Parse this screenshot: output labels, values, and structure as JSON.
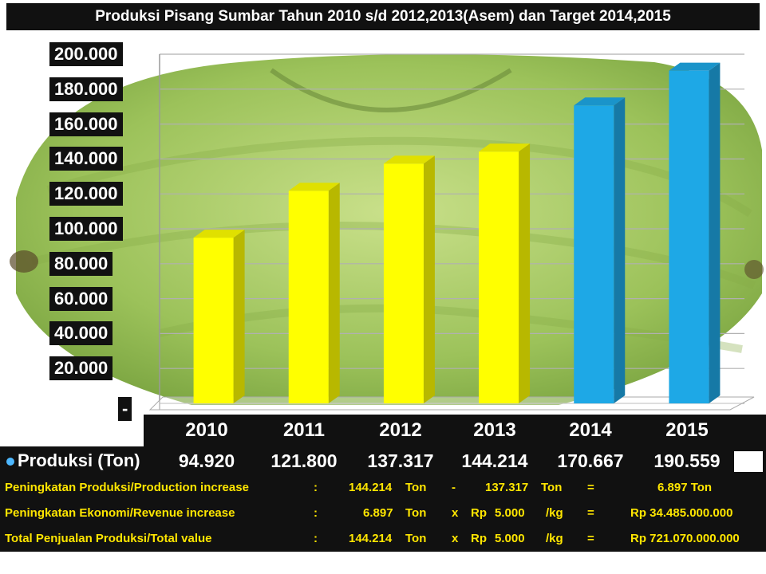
{
  "title": "Produksi Pisang  Sumbar Tahun 2010 s/d 2012,2013(Asem)  dan Target  2014,2015",
  "chart_data": {
    "type": "bar",
    "categories": [
      "2010",
      "2011",
      "2012",
      "2013",
      "2014",
      "2015"
    ],
    "values": [
      94920,
      121800,
      137317,
      144214,
      170667,
      190559
    ],
    "value_labels": [
      "94.920",
      "121.800",
      "137.317",
      "144.214",
      "170.667",
      "190.559"
    ],
    "bar_colors": [
      "#ffff00",
      "#ffff00",
      "#ffff00",
      "#ffff00",
      "#1ea8e6",
      "#1ea8e6"
    ],
    "ylim": [
      0,
      200000
    ],
    "yticks": [
      "200.000",
      "180.000",
      "160.000",
      "140.000",
      "120.000",
      "100.000",
      "80.000",
      "60.000",
      "40.000",
      "20.000",
      "-"
    ],
    "row_label": "Produksi (Ton)",
    "grid": true
  },
  "summary": [
    {
      "label": "Peningkatan Produksi/Production increase",
      "colon": ":",
      "v1": "144.214",
      "u1": "Ton",
      "op": "-",
      "rp": "",
      "v2": "137.317",
      "u2": "Ton",
      "eq": "=",
      "res": "6.897  Ton"
    },
    {
      "label": "Peningkatan Ekonomi/Revenue increase",
      "colon": ":",
      "v1": "6.897",
      "u1": "Ton",
      "op": "x",
      "rp": "Rp",
      "v2": "5.000",
      "u2": "/kg",
      "eq": "=",
      "res": "Rp   34.485.000.000"
    },
    {
      "label": "Total Penjualan Produksi/Total  value",
      "colon": ":",
      "v1": "144.214",
      "u1": "Ton",
      "op": "x",
      "rp": "Rp",
      "v2": "5.000",
      "u2": "/kg",
      "eq": "=",
      "res": "Rp 721.070.000.000"
    }
  ]
}
